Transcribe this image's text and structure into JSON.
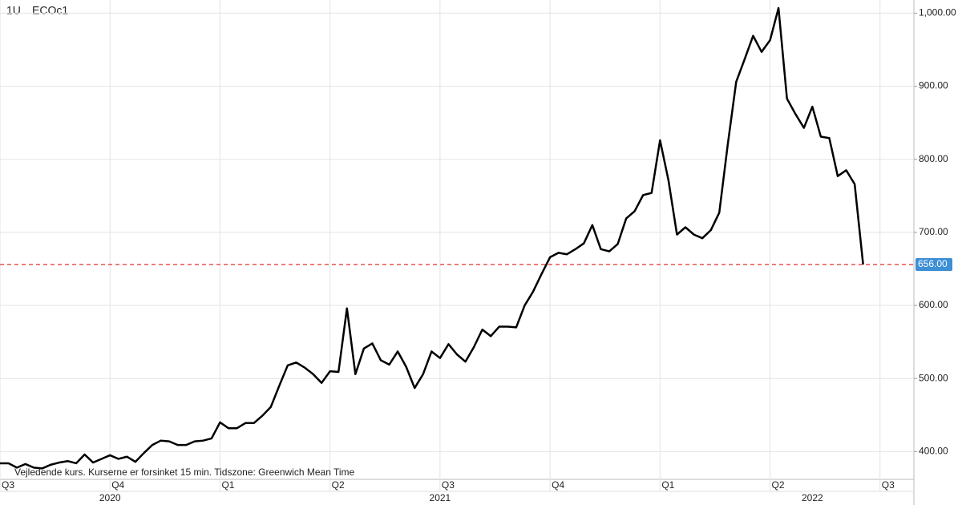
{
  "chart_data": {
    "type": "line",
    "interval": "1U",
    "symbol": "ECOc1",
    "note": "Vejledende kurs. Kurserne er forsinket 15 min.   Tidszone: Greenwich Mean Time",
    "values": [
      384,
      384,
      378,
      383,
      378,
      377,
      382,
      385,
      387,
      384,
      396,
      385,
      390,
      395,
      390,
      393,
      386,
      398,
      409,
      415,
      414,
      409,
      409,
      414,
      415,
      418,
      440,
      432,
      432,
      439,
      439,
      449,
      461,
      490,
      518,
      522,
      515,
      506,
      494,
      510,
      509,
      596,
      506,
      541,
      548,
      525,
      519,
      537,
      516,
      487,
      506,
      537,
      528,
      547,
      533,
      523,
      543,
      567,
      558,
      571,
      571,
      570,
      600,
      619,
      643,
      666,
      672,
      670,
      677,
      685,
      710,
      677,
      674,
      684,
      719,
      729,
      751,
      754,
      826,
      771,
      697,
      707,
      697,
      692,
      703,
      727,
      820,
      906,
      937,
      969,
      947,
      963,
      1007,
      883,
      862,
      843,
      872,
      831,
      829,
      777,
      785,
      766,
      656
    ],
    "color": "#000000",
    "xlim": [
      0,
      108
    ],
    "xticks": [
      {
        "value": 0,
        "label": "Q3"
      },
      {
        "value": 13,
        "label": "Q4"
      },
      {
        "value": 26,
        "label": "Q1"
      },
      {
        "value": 39,
        "label": "Q2"
      },
      {
        "value": 52,
        "label": "Q3"
      },
      {
        "value": 65,
        "label": "Q4"
      },
      {
        "value": 78,
        "label": "Q1"
      },
      {
        "value": 91,
        "label": "Q2"
      },
      {
        "value": 104,
        "label": "Q3"
      }
    ],
    "year_labels": [
      {
        "value": 13,
        "label": "2020"
      },
      {
        "value": 52,
        "label": "2021"
      },
      {
        "value": 96,
        "label": "2022"
      }
    ],
    "ylim": [
      362,
      1018
    ],
    "yticks": [
      {
        "value": 400,
        "label": "400.00"
      },
      {
        "value": 500,
        "label": "500.00"
      },
      {
        "value": 600,
        "label": "600.00"
      },
      {
        "value": 700,
        "label": "700.00"
      },
      {
        "value": 800,
        "label": "800.00"
      },
      {
        "value": 900,
        "label": "900.00"
      },
      {
        "value": 1000,
        "label": "1,000.00"
      }
    ],
    "grid": true,
    "last_value": {
      "value": 656,
      "label": "656.00"
    },
    "last_value_color": "#d9342b",
    "last_value_label_color": "#3d8fd6"
  }
}
